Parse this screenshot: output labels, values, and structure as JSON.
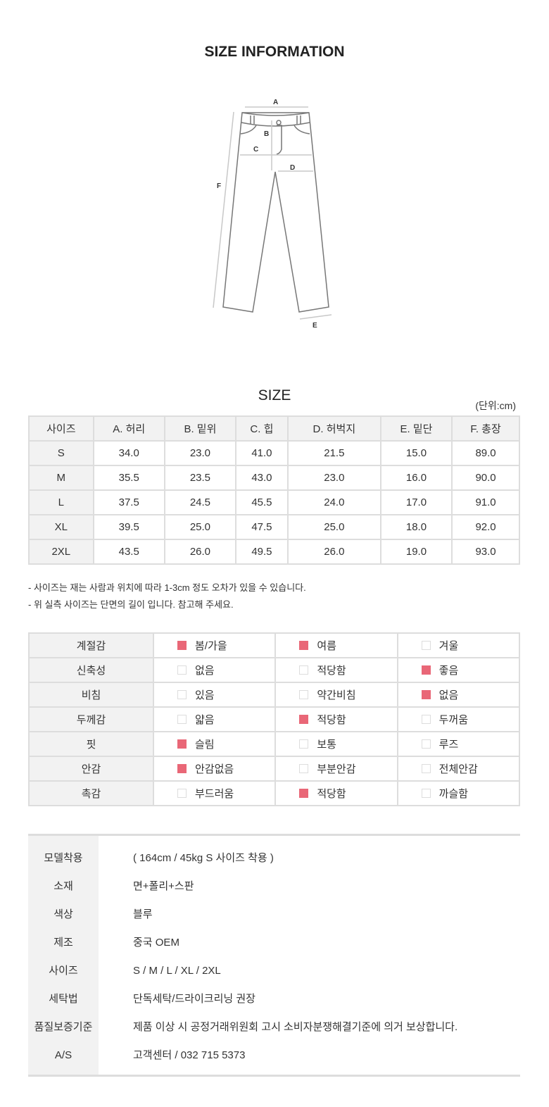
{
  "header": {
    "title": "SIZE INFORMATION"
  },
  "diagram": {
    "labels": [
      "A",
      "B",
      "C",
      "D",
      "E",
      "F"
    ]
  },
  "size_section": {
    "title": "SIZE",
    "unit": "(단위:cm)",
    "columns": [
      "사이즈",
      "A. 허리",
      "B. 밑위",
      "C. 힙",
      "D. 허벅지",
      "E. 밑단",
      "F. 총장"
    ],
    "rows": [
      [
        "S",
        "34.0",
        "23.0",
        "41.0",
        "21.5",
        "15.0",
        "89.0"
      ],
      [
        "M",
        "35.5",
        "23.5",
        "43.0",
        "23.0",
        "16.0",
        "90.0"
      ],
      [
        "L",
        "37.5",
        "24.5",
        "45.5",
        "24.0",
        "17.0",
        "91.0"
      ],
      [
        "XL",
        "39.5",
        "25.0",
        "47.5",
        "25.0",
        "18.0",
        "92.0"
      ],
      [
        "2XL",
        "43.5",
        "26.0",
        "49.5",
        "26.0",
        "19.0",
        "93.0"
      ]
    ],
    "notes": [
      "- 사이즈는 재는 사람과 위치에 따라 1-3cm 정도 오차가 있을 수 있습니다.",
      "- 위 실측 사이즈는 단면의 길이 입니다. 참고해 주세요."
    ]
  },
  "attributes": {
    "accent": "#e96777",
    "rows": [
      {
        "label": "계절감",
        "options": [
          {
            "text": "봄/가을",
            "checked": true
          },
          {
            "text": "여름",
            "checked": true
          },
          {
            "text": "겨울",
            "checked": false
          }
        ]
      },
      {
        "label": "신축성",
        "options": [
          {
            "text": "없음",
            "checked": false
          },
          {
            "text": "적당함",
            "checked": false
          },
          {
            "text": "좋음",
            "checked": true
          }
        ]
      },
      {
        "label": "비침",
        "options": [
          {
            "text": "있음",
            "checked": false
          },
          {
            "text": "약간비침",
            "checked": false
          },
          {
            "text": "없음",
            "checked": true
          }
        ]
      },
      {
        "label": "두께감",
        "options": [
          {
            "text": "얇음",
            "checked": false
          },
          {
            "text": "적당함",
            "checked": true
          },
          {
            "text": "두꺼움",
            "checked": false
          }
        ]
      },
      {
        "label": "핏",
        "options": [
          {
            "text": "슬림",
            "checked": true
          },
          {
            "text": "보통",
            "checked": false
          },
          {
            "text": "루즈",
            "checked": false
          }
        ]
      },
      {
        "label": "안감",
        "options": [
          {
            "text": "안감없음",
            "checked": true
          },
          {
            "text": "부분안감",
            "checked": false
          },
          {
            "text": "전체안감",
            "checked": false
          }
        ]
      },
      {
        "label": "촉감",
        "options": [
          {
            "text": "부드러움",
            "checked": false
          },
          {
            "text": "적당함",
            "checked": true
          },
          {
            "text": "까슬함",
            "checked": false
          }
        ]
      }
    ]
  },
  "info": [
    {
      "key": "모델착용",
      "value": "( 164cm / 45kg  S 사이즈 착용 )"
    },
    {
      "key": "소재",
      "value": "면+폴리+스판"
    },
    {
      "key": "색상",
      "value": "블루"
    },
    {
      "key": "제조",
      "value": "중국 OEM"
    },
    {
      "key": "사이즈",
      "value": "S / M / L / XL / 2XL"
    },
    {
      "key": "세탁법",
      "value": "단독세탁/드라이크리닝 권장"
    },
    {
      "key": "품질보증기준",
      "value": "제품 이상 시 공정거래위원회 고시 소비자분쟁해결기준에 의거 보상합니다."
    },
    {
      "key": "A/S",
      "value": "고객센터 / 032 715 5373"
    }
  ]
}
